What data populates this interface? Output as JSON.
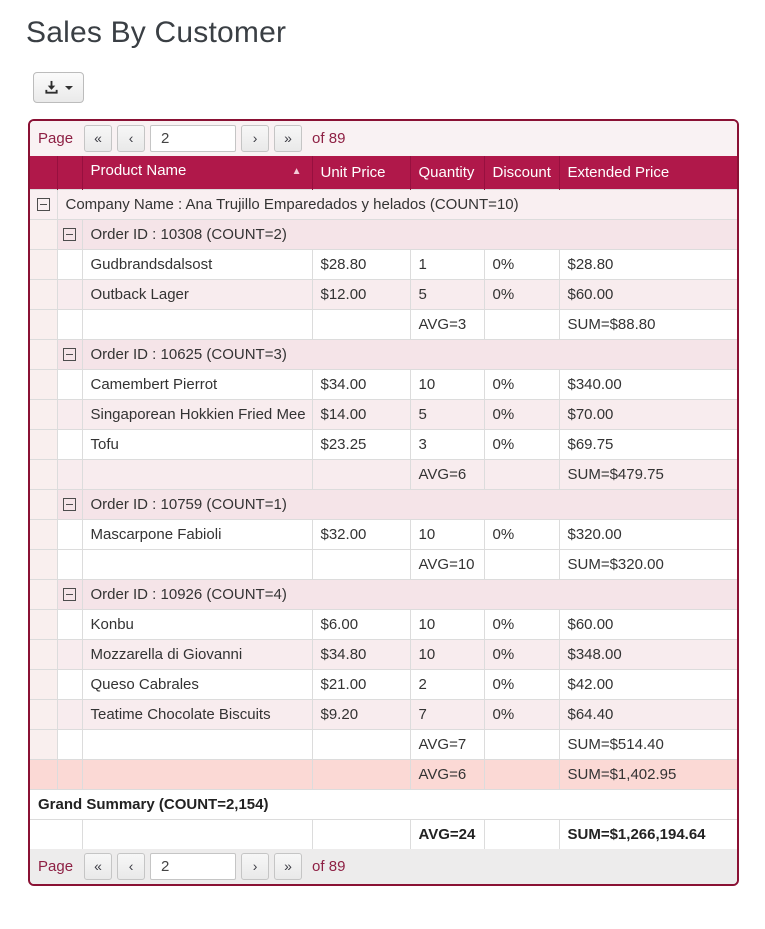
{
  "title": "Sales By Customer",
  "colors": {
    "header_bg": "#b0184a",
    "frame_border": "#8a1134",
    "accent_text": "#8e2044",
    "zebra_pink": "#f8ecee",
    "company_summary_bg": "#fbd9d5"
  },
  "toolbar": {
    "download_icon": "download-icon",
    "caret_icon": "caret-down-icon"
  },
  "pagination": {
    "label": "Page",
    "first": "«",
    "prev": "‹",
    "next": "›",
    "last": "»",
    "page_value": "2",
    "of_text": "of 89"
  },
  "table": {
    "headers": {
      "product": "Product Name",
      "unit_price": "Unit Price",
      "quantity": "Quantity",
      "discount": "Discount",
      "extended": "Extended Price",
      "sort_icon": "▲"
    },
    "rows": [
      {
        "type": "company",
        "label": "Company Name : Ana Trujillo Emparedados y helados (COUNT=10)"
      },
      {
        "type": "order",
        "label": "Order ID : 10308 (COUNT=2)"
      },
      {
        "type": "data",
        "shade": "white",
        "product": "Gudbrandsdalsost",
        "unit_price": "$28.80",
        "quantity": "1",
        "discount": "0%",
        "extended": "$28.80"
      },
      {
        "type": "data",
        "shade": "pink",
        "product": "Outback Lager",
        "unit_price": "$12.00",
        "quantity": "5",
        "discount": "0%",
        "extended": "$60.00"
      },
      {
        "type": "summary",
        "shade": "white",
        "quantity": "AVG=3",
        "extended": "SUM=$88.80"
      },
      {
        "type": "order",
        "label": "Order ID : 10625 (COUNT=3)"
      },
      {
        "type": "data",
        "shade": "white",
        "product": "Camembert Pierrot",
        "unit_price": "$34.00",
        "quantity": "10",
        "discount": "0%",
        "extended": "$340.00"
      },
      {
        "type": "data",
        "shade": "pink",
        "product": "Singaporean Hokkien Fried Mee",
        "unit_price": "$14.00",
        "quantity": "5",
        "discount": "0%",
        "extended": "$70.00"
      },
      {
        "type": "data",
        "shade": "white",
        "product": "Tofu",
        "unit_price": "$23.25",
        "quantity": "3",
        "discount": "0%",
        "extended": "$69.75"
      },
      {
        "type": "summary",
        "shade": "pink",
        "quantity": "AVG=6",
        "extended": "SUM=$479.75"
      },
      {
        "type": "order",
        "label": "Order ID : 10759 (COUNT=1)"
      },
      {
        "type": "data",
        "shade": "white",
        "product": "Mascarpone Fabioli",
        "unit_price": "$32.00",
        "quantity": "10",
        "discount": "0%",
        "extended": "$320.00"
      },
      {
        "type": "summary",
        "shade": "white",
        "quantity": "AVG=10",
        "extended": "SUM=$320.00"
      },
      {
        "type": "order",
        "label": "Order ID : 10926 (COUNT=4)"
      },
      {
        "type": "data",
        "shade": "white",
        "product": "Konbu",
        "unit_price": "$6.00",
        "quantity": "10",
        "discount": "0%",
        "extended": "$60.00"
      },
      {
        "type": "data",
        "shade": "pink",
        "product": "Mozzarella di Giovanni",
        "unit_price": "$34.80",
        "quantity": "10",
        "discount": "0%",
        "extended": "$348.00"
      },
      {
        "type": "data",
        "shade": "white",
        "product": "Queso Cabrales",
        "unit_price": "$21.00",
        "quantity": "2",
        "discount": "0%",
        "extended": "$42.00"
      },
      {
        "type": "data",
        "shade": "pink",
        "product": "Teatime Chocolate Biscuits",
        "unit_price": "$9.20",
        "quantity": "7",
        "discount": "0%",
        "extended": "$64.40"
      },
      {
        "type": "summary",
        "shade": "white",
        "quantity": "AVG=7",
        "extended": "SUM=$514.40"
      },
      {
        "type": "company_summary",
        "shade": "salmon",
        "quantity": "AVG=6",
        "extended": "SUM=$1,402.95"
      },
      {
        "type": "grand_header",
        "label": "Grand Summary (COUNT=2,154)"
      },
      {
        "type": "grand_summary",
        "quantity": "AVG=24",
        "extended": "SUM=$1,266,194.64"
      }
    ]
  }
}
